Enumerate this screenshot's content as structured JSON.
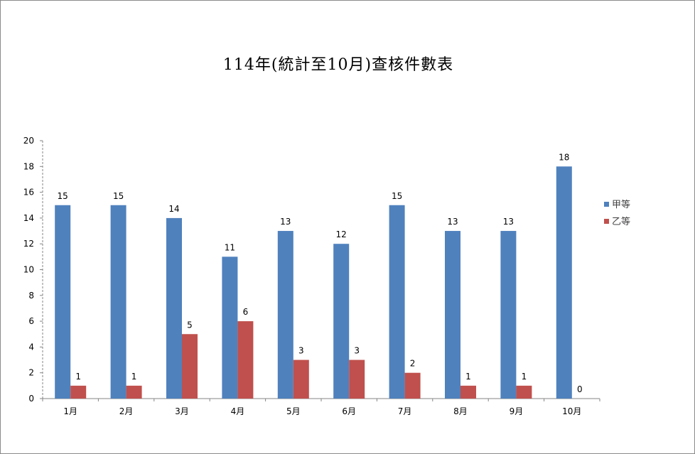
{
  "chart_data": {
    "type": "bar",
    "title": "114年(統計至10月)查核件數表",
    "xlabel": "",
    "ylabel": "",
    "categories": [
      "1月",
      "2月",
      "3月",
      "4月",
      "5月",
      "6月",
      "7月",
      "8月",
      "9月",
      "10月"
    ],
    "series": [
      {
        "name": "甲等",
        "color": "#4F81BD",
        "values": [
          15,
          15,
          14,
          11,
          13,
          12,
          15,
          13,
          13,
          18
        ]
      },
      {
        "name": "乙等",
        "color": "#C0504D",
        "values": [
          1,
          1,
          5,
          6,
          3,
          3,
          2,
          1,
          1,
          0
        ]
      }
    ],
    "ylim": [
      0,
      20
    ],
    "yticks": [
      0,
      2,
      4,
      6,
      8,
      10,
      12,
      14,
      16,
      18,
      20
    ],
    "grid": false,
    "data_labels": true,
    "legend_position": "right"
  }
}
